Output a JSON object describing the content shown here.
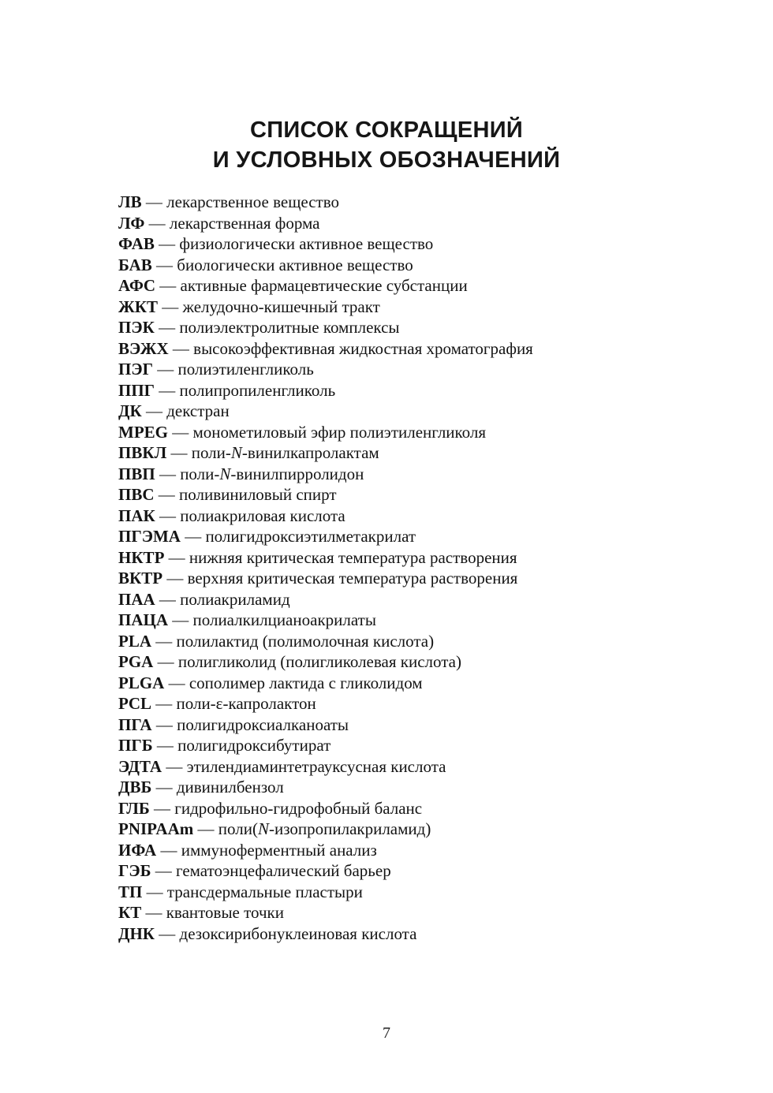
{
  "title": {
    "line1": "СПИСОК СОКРАЩЕНИЙ",
    "line2": "И УСЛОВНЫХ ОБОЗНАЧЕНИЙ"
  },
  "separator": "—",
  "abbreviations": [
    {
      "abbr": "ЛВ",
      "def": "лекарственное вещество"
    },
    {
      "abbr": "ЛФ",
      "def": "лекарственная форма"
    },
    {
      "abbr": "ФАВ",
      "def": "физиологически активное вещество"
    },
    {
      "abbr": "БАВ",
      "def": "биологически активное вещество"
    },
    {
      "abbr": "АФС",
      "def": "активные фармацевтические субстанции"
    },
    {
      "abbr": "ЖКТ",
      "def": "желудочно-кишечный тракт"
    },
    {
      "abbr": "ПЭК",
      "def": "полиэлектролитные комплексы"
    },
    {
      "abbr": "ВЭЖХ",
      "def": "высокоэффективная жидкостная хроматография"
    },
    {
      "abbr": "ПЭГ",
      "def": "полиэтиленгликоль"
    },
    {
      "abbr": "ППГ",
      "def": "полипропиленгликоль"
    },
    {
      "abbr": "ДК",
      "def": "декстран"
    },
    {
      "abbr": "MPEG",
      "def": "монометиловый эфир полиэтиленгликоля"
    },
    {
      "abbr": "ПВКЛ",
      "def": [
        {
          "text": "поли-"
        },
        {
          "text": "N",
          "italic": true
        },
        {
          "text": "-винилкапролактам"
        }
      ]
    },
    {
      "abbr": "ПВП",
      "def": [
        {
          "text": "поли-"
        },
        {
          "text": "N",
          "italic": true
        },
        {
          "text": "-винилпирролидон"
        }
      ]
    },
    {
      "abbr": "ПВС",
      "def": "поливиниловый спирт"
    },
    {
      "abbr": "ПАК",
      "def": "полиакриловая кислота"
    },
    {
      "abbr": "ПГЭМА",
      "def": "полигидроксиэтилметакрилат"
    },
    {
      "abbr": "НКТР",
      "def": "нижняя критическая температура растворения"
    },
    {
      "abbr": "ВКТР",
      "def": "верхняя критическая температура растворения"
    },
    {
      "abbr": "ПАА",
      "def": "полиакриламид"
    },
    {
      "abbr": "ПАЦА",
      "def": "полиалкилцианоакрилаты"
    },
    {
      "abbr": "PLA",
      "def": "полилактид (полимолочная кислота)"
    },
    {
      "abbr": "PGA",
      "def": "полигликолид (полигликолевая кислота)"
    },
    {
      "abbr": "PLGA",
      "def": "сополимер лактида с гликолидом"
    },
    {
      "abbr": "PCL",
      "def": "поли-ε-капролактон"
    },
    {
      "abbr": "ПГА",
      "def": "полигидроксиалканоаты"
    },
    {
      "abbr": "ПГБ",
      "def": "полигидроксибутират"
    },
    {
      "abbr": "ЭДТА",
      "def": "этилендиаминтетрауксусная кислота"
    },
    {
      "abbr": "ДВБ",
      "def": "дивинилбензол"
    },
    {
      "abbr": "ГЛБ",
      "def": "гидрофильно-гидрофобный баланс"
    },
    {
      "abbr": "PNIPAAm",
      "def": [
        {
          "text": "поли("
        },
        {
          "text": "N",
          "italic": true
        },
        {
          "text": "-изопропилакриламид)"
        }
      ]
    },
    {
      "abbr": "ИФА",
      "def": "иммуноферментный анализ"
    },
    {
      "abbr": "ГЭБ",
      "def": "гематоэнцефалический барьер"
    },
    {
      "abbr": "ТП",
      "def": "трансдермальные пластыри"
    },
    {
      "abbr": "КТ",
      "def": "квантовые точки"
    },
    {
      "abbr": "ДНК",
      "def": "дезоксирибонуклеиновая кислота"
    }
  ],
  "page_number": "7"
}
